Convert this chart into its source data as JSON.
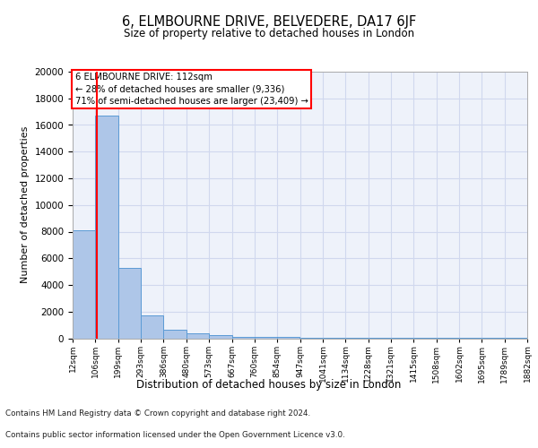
{
  "title1": "6, ELMBOURNE DRIVE, BELVEDERE, DA17 6JF",
  "title2": "Size of property relative to detached houses in London",
  "xlabel": "Distribution of detached houses by size in London",
  "ylabel": "Number of detached properties",
  "bar_values": [
    8100,
    16700,
    5300,
    1700,
    650,
    350,
    220,
    130,
    100,
    80,
    60,
    50,
    40,
    35,
    30,
    25,
    20,
    15,
    12,
    10
  ],
  "bin_edges": [
    12,
    106,
    199,
    293,
    386,
    480,
    573,
    667,
    760,
    854,
    947,
    1041,
    1134,
    1228,
    1321,
    1415,
    1508,
    1602,
    1695,
    1789,
    1882
  ],
  "bin_labels": [
    "12sqm",
    "106sqm",
    "199sqm",
    "293sqm",
    "386sqm",
    "480sqm",
    "573sqm",
    "667sqm",
    "760sqm",
    "854sqm",
    "947sqm",
    "1041sqm",
    "1134sqm",
    "1228sqm",
    "1321sqm",
    "1415sqm",
    "1508sqm",
    "1602sqm",
    "1695sqm",
    "1789sqm",
    "1882sqm"
  ],
  "bar_color": "#aec6e8",
  "bar_edge_color": "#5b9bd5",
  "property_line_x": 112,
  "property_line_color": "red",
  "annotation_title": "6 ELMBOURNE DRIVE: 112sqm",
  "annotation_line1": "← 28% of detached houses are smaller (9,336)",
  "annotation_line2": "71% of semi-detached houses are larger (23,409) →",
  "annotation_box_color": "white",
  "annotation_box_edge_color": "red",
  "ylim": [
    0,
    20000
  ],
  "yticks": [
    0,
    2000,
    4000,
    6000,
    8000,
    10000,
    12000,
    14000,
    16000,
    18000,
    20000
  ],
  "background_color": "#eef2fa",
  "grid_color": "#d0d8ee",
  "footer1": "Contains HM Land Registry data © Crown copyright and database right 2024.",
  "footer2": "Contains public sector information licensed under the Open Government Licence v3.0."
}
